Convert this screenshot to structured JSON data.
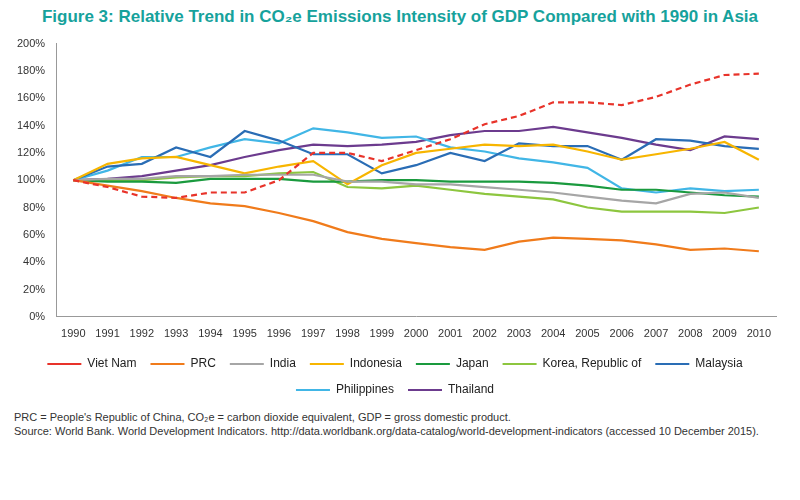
{
  "chart_data": {
    "type": "line",
    "title": "Figure 3:  Relative Trend in CO₂e Emissions Intensity of GDP Compared with 1990 in Asia",
    "notes": [
      "PRC = People's Republic of China, CO₂e = carbon dioxide equivalent, GDP = gross domestic product.",
      "Source: World Bank. World Development Indicators. http://data.worldbank.org/data-catalog/world-development-indicators (accessed 10 December 2015)."
    ],
    "categories": [
      "1990",
      "1991",
      "1992",
      "1993",
      "1994",
      "1995",
      "1996",
      "1997",
      "1998",
      "1999",
      "2000",
      "2001",
      "2002",
      "2003",
      "2004",
      "2005",
      "2006",
      "2007",
      "2008",
      "2009",
      "2010"
    ],
    "series": [
      {
        "name": "Viet Nam",
        "color": "#e8332a",
        "line_style": "dashed",
        "values": [
          100,
          95,
          88,
          87,
          91,
          91,
          100,
          120,
          120,
          114,
          122,
          130,
          141,
          147,
          157,
          157,
          155,
          161,
          170,
          177,
          178
        ]
      },
      {
        "name": "PRC",
        "color": "#f07b1b",
        "line_style": "solid",
        "values": [
          100,
          96,
          92,
          87,
          83,
          81,
          76,
          70,
          62,
          57,
          54,
          51,
          49,
          55,
          58,
          57,
          56,
          53,
          49,
          50,
          48
        ]
      },
      {
        "name": "India",
        "color": "#a6a6a6",
        "line_style": "solid",
        "values": [
          100,
          101,
          101,
          103,
          103,
          104,
          104,
          104,
          99,
          99,
          97,
          97,
          95,
          93,
          91,
          88,
          85,
          83,
          90,
          91,
          87
        ]
      },
      {
        "name": "Indonesia",
        "color": "#f7b500",
        "line_style": "solid",
        "values": [
          100,
          112,
          116,
          117,
          111,
          105,
          110,
          114,
          97,
          111,
          120,
          123,
          126,
          125,
          126,
          121,
          115,
          119,
          123,
          128,
          115
        ]
      },
      {
        "name": "Japan",
        "color": "#1a9a3e",
        "line_style": "solid",
        "values": [
          100,
          99,
          99,
          98,
          101,
          101,
          101,
          99,
          99,
          100,
          100,
          99,
          99,
          99,
          98,
          96,
          93,
          93,
          91,
          89,
          88
        ]
      },
      {
        "name": "Korea, Republic of",
        "color": "#8dc63f",
        "line_style": "solid",
        "values": [
          100,
          100,
          100,
          102,
          103,
          103,
          105,
          106,
          95,
          94,
          96,
          93,
          90,
          88,
          86,
          80,
          77,
          77,
          77,
          76,
          80
        ]
      },
      {
        "name": "Malaysia",
        "color": "#2a6db5",
        "line_style": "solid",
        "values": [
          100,
          110,
          112,
          124,
          117,
          136,
          129,
          119,
          119,
          105,
          111,
          120,
          114,
          127,
          125,
          125,
          115,
          130,
          129,
          125,
          123
        ]
      },
      {
        "name": "Philippines",
        "color": "#41b6e6",
        "line_style": "solid",
        "values": [
          100,
          107,
          117,
          117,
          124,
          130,
          127,
          138,
          135,
          131,
          132,
          124,
          121,
          116,
          113,
          109,
          94,
          91,
          94,
          92,
          93
        ]
      },
      {
        "name": "Thailand",
        "color": "#6c3b8e",
        "line_style": "solid",
        "values": [
          100,
          101,
          103,
          107,
          111,
          117,
          122,
          126,
          125,
          126,
          128,
          133,
          136,
          136,
          139,
          135,
          131,
          126,
          122,
          132,
          130
        ]
      }
    ],
    "ylim": [
      0,
      200
    ],
    "yticks": [
      {
        "value": 0,
        "label": "0%"
      },
      {
        "value": 20,
        "label": "20%"
      },
      {
        "value": 40,
        "label": "40%"
      },
      {
        "value": 60,
        "label": "60%"
      },
      {
        "value": 80,
        "label": "80%"
      },
      {
        "value": 100,
        "label": "100%"
      },
      {
        "value": 120,
        "label": "120%"
      },
      {
        "value": 140,
        "label": "140%"
      },
      {
        "value": 160,
        "label": "160%"
      },
      {
        "value": 180,
        "label": "180%"
      },
      {
        "value": 200,
        "label": "200%"
      }
    ],
    "grid": false,
    "legend": "bottom"
  }
}
